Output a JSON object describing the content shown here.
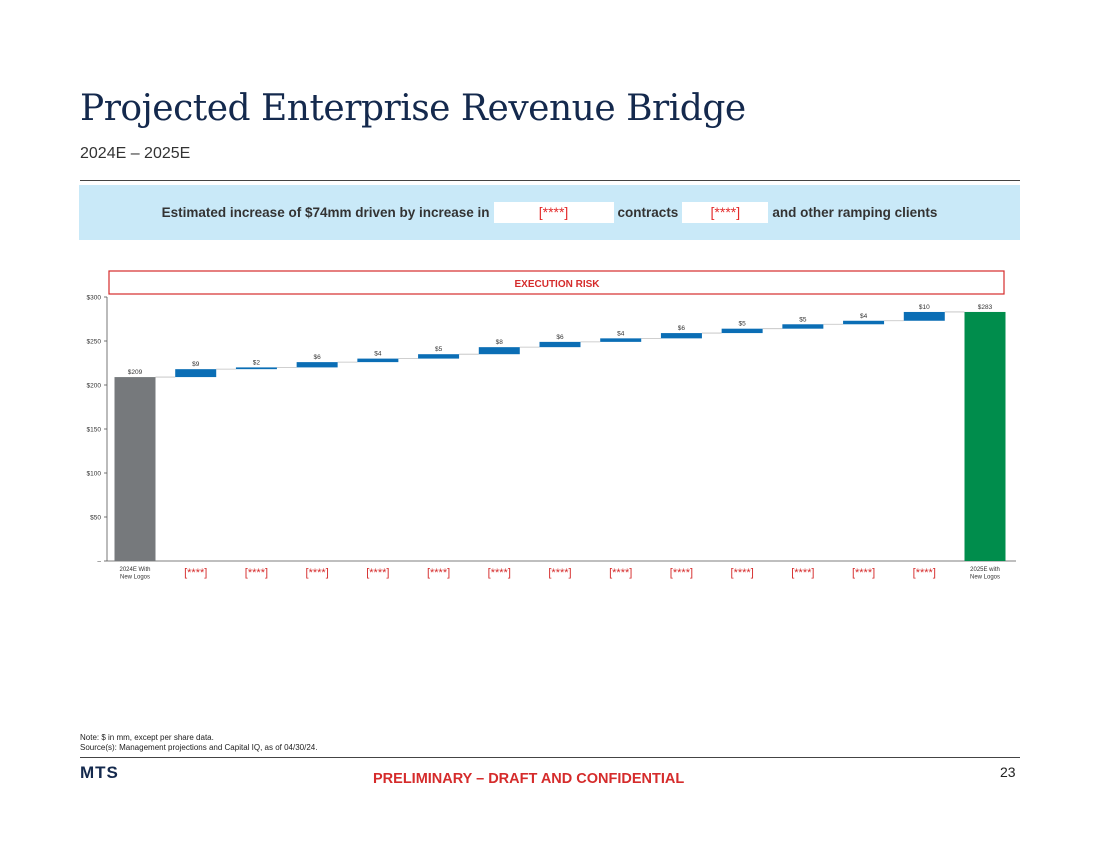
{
  "slide": {
    "title": "Projected Enterprise Revenue Bridge",
    "subtitle": "2024E – 2025E",
    "page_number": "23",
    "logo": "MTS",
    "confidential": "PRELIMINARY – DRAFT AND CONFIDENTIAL",
    "note_line_1": "Note: $ in mm, except per share data.",
    "note_line_2": "Source(s): Management projections and Capital IQ, as of 04/30/24."
  },
  "banner": {
    "part1": "Estimated increase of $74mm driven by increase in",
    "redact1": "[****]",
    "part2": "contracts",
    "redact2": "[****]",
    "part3": "and other ramping clients"
  },
  "colors": {
    "start_bar": "#76797c",
    "delta_bar": "#0b6eb5",
    "end_bar": "#008d4c",
    "risk_red": "#d52b2b",
    "axis": "#555555"
  },
  "chart_data": {
    "type": "bar",
    "subtype": "waterfall",
    "risk_label": "EXECUTION RISK",
    "ylim": [
      0,
      300
    ],
    "yticks": [
      0,
      50,
      100,
      150,
      200,
      250,
      300
    ],
    "ytick_labels": [
      "–",
      "$50",
      "$100",
      "$150",
      "$200",
      "$250",
      "$300"
    ],
    "categories": [
      "2024E With\nNew Logos",
      "[****]",
      "[****]",
      "[****]",
      "[****]",
      "[****]",
      "[****]",
      "[****]",
      "[****]",
      "[****]",
      "[****]",
      "[****]",
      "[****]",
      "[****]",
      "2025E with\nNew Logos"
    ],
    "kinds": [
      "start",
      "delta",
      "delta",
      "delta",
      "delta",
      "delta",
      "delta",
      "delta",
      "delta",
      "delta",
      "delta",
      "delta",
      "delta",
      "delta",
      "end"
    ],
    "values": [
      209,
      9,
      2,
      6,
      4,
      5,
      8,
      6,
      4,
      6,
      5,
      5,
      4,
      10,
      283
    ],
    "value_labels": [
      "$209",
      "$9",
      "$2",
      "$6",
      "$4",
      "$5",
      "$8",
      "$6",
      "$4",
      "$6",
      "$5",
      "$5",
      "$4",
      "$10",
      "$283"
    ]
  }
}
